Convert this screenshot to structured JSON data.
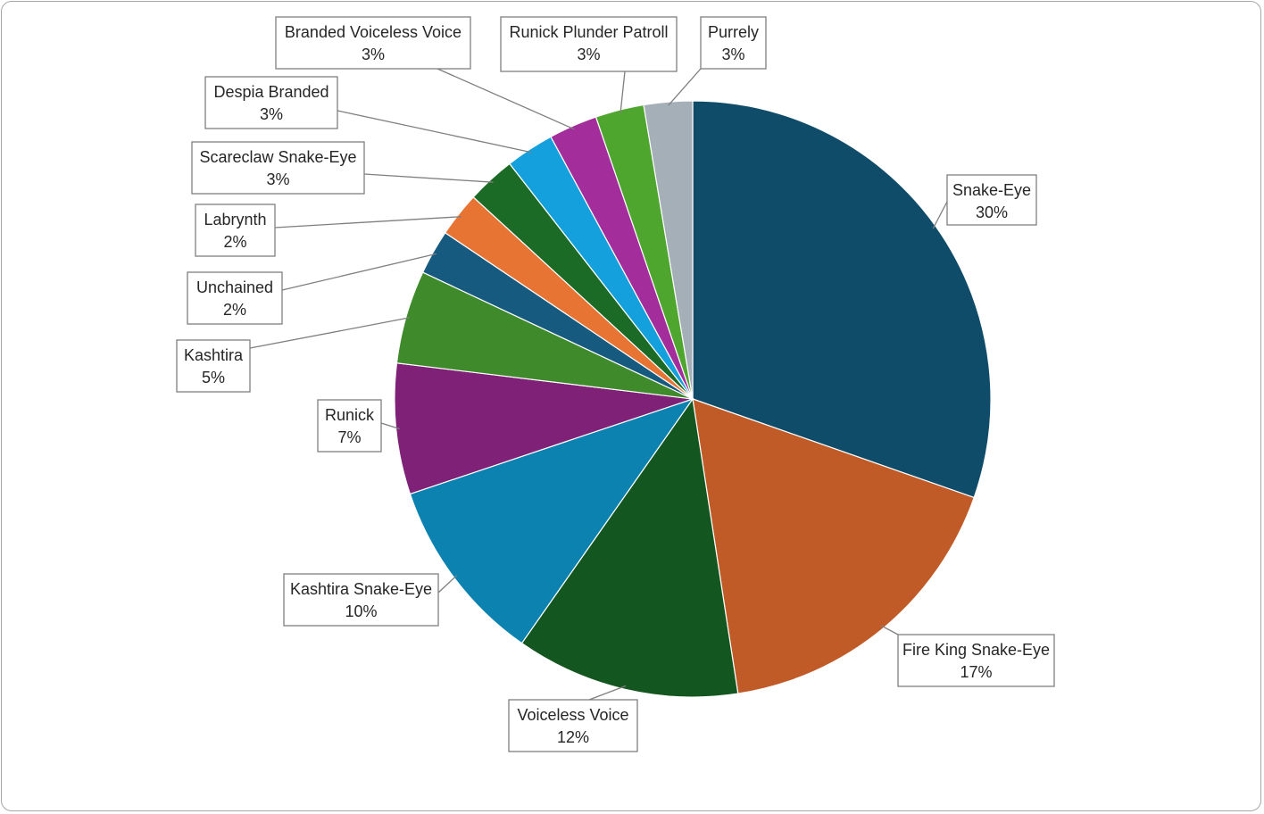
{
  "chart_data": {
    "type": "pie",
    "title": "",
    "start_angle_deg": 0,
    "direction": "clockwise",
    "legend": "none",
    "data_labels": "category and percentage, callouts",
    "slices": [
      {
        "name": "Snake-Eye",
        "value": 30,
        "label": "30%",
        "color": "#0f4c6a"
      },
      {
        "name": "Fire King Snake-Eye",
        "value": 17,
        "label": "17%",
        "color": "#c05b27"
      },
      {
        "name": "Voiceless Voice",
        "value": 12,
        "label": "12%",
        "color": "#13561f"
      },
      {
        "name": "Kashtira Snake-Eye",
        "value": 10,
        "label": "10%",
        "color": "#0b82b0"
      },
      {
        "name": "Runick",
        "value": 7,
        "label": "7%",
        "color": "#7f2176"
      },
      {
        "name": "Kashtira",
        "value": 5,
        "label": "5%",
        "color": "#3f8a2b"
      },
      {
        "name": "Unchained",
        "value": 2.4,
        "label": "2%",
        "color": "#175a80"
      },
      {
        "name": "Labrynth",
        "value": 2.4,
        "label": "2%",
        "color": "#e87434"
      },
      {
        "name": "Scareclaw Snake-Eye",
        "value": 2.6,
        "label": "3%",
        "color": "#1b6b26"
      },
      {
        "name": "Despia Branded",
        "value": 2.6,
        "label": "3%",
        "color": "#14a0dc"
      },
      {
        "name": "Branded Voiceless Voice",
        "value": 2.6,
        "label": "3%",
        "color": "#a32d9a"
      },
      {
        "name": "Runick Plunder Patroll",
        "value": 2.6,
        "label": "3%",
        "color": "#4ea62f"
      },
      {
        "name": "Purrely",
        "value": 2.6,
        "label": "3%",
        "color": "#a5afb7"
      }
    ]
  }
}
